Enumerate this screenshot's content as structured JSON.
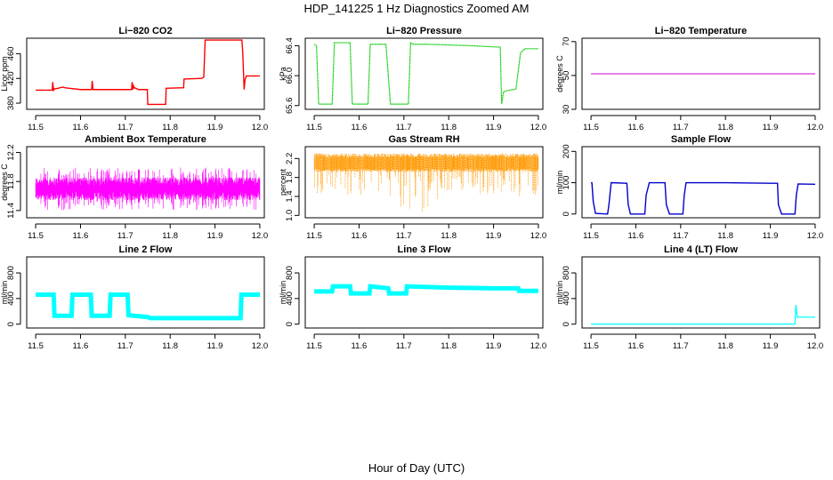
{
  "figure": {
    "title": "HDP_141225  1 Hz Diagnostics Zoomed AM",
    "xlabel": "Hour of Day (UTC)"
  },
  "chart_data": [
    {
      "id": "co2",
      "type": "line",
      "title": "Li−820 CO2",
      "xlabel": "",
      "ylabel": "Licor ppm",
      "color": "#ff0000",
      "marker_size": 1.0,
      "xlim": [
        11.48,
        12.01
      ],
      "xticks": [
        "11.5",
        "11.6",
        "11.7",
        "11.8",
        "11.9",
        "12.0"
      ],
      "ylim": [
        370,
        485
      ],
      "yticks": [
        "380",
        "420",
        "460"
      ],
      "series": [
        {
          "x": [
            11.5,
            11.537,
            11.538,
            11.54,
            11.542,
            11.55,
            11.56,
            11.565,
            11.575,
            11.6,
            11.625,
            11.626,
            11.628,
            11.63,
            11.7,
            11.714,
            11.715,
            11.717,
            11.718,
            11.72,
            11.73,
            11.749,
            11.75,
            11.79,
            11.791,
            11.83,
            11.831,
            11.87,
            11.875,
            11.878,
            11.96,
            11.962,
            11.965,
            11.967,
            11.97,
            12.0
          ],
          "y": [
            401,
            401,
            414,
            401,
            403,
            404,
            406,
            405,
            404,
            402,
            402,
            416,
            402,
            402,
            402,
            402,
            414,
            402,
            408,
            405,
            402,
            402,
            378,
            378,
            404,
            405,
            419,
            420,
            422,
            482,
            482,
            460,
            402,
            418,
            424,
            424
          ]
        }
      ]
    },
    {
      "id": "pressure",
      "type": "line",
      "title": "Li−820 Pressure",
      "xlabel": "",
      "ylabel": "kPa",
      "color": "#00cc00",
      "marker_size": 1.0,
      "xlim": [
        11.48,
        12.01
      ],
      "xticks": [
        "11.5",
        "11.6",
        "11.7",
        "11.8",
        "11.9",
        "12.0"
      ],
      "ylim": [
        65.55,
        66.5
      ],
      "yticks": [
        "65.6",
        "66.0",
        "66.4"
      ],
      "series": [
        {
          "x": [
            11.5,
            11.505,
            11.51,
            11.54,
            11.545,
            11.58,
            11.585,
            11.62,
            11.625,
            11.66,
            11.67,
            11.71,
            11.715,
            11.72,
            11.75,
            11.85,
            11.915,
            11.918,
            11.922,
            11.93,
            11.95,
            11.96,
            11.97,
            11.98,
            11.99,
            12.0
          ],
          "y": [
            66.42,
            66.4,
            65.62,
            65.62,
            66.44,
            66.44,
            65.62,
            65.62,
            66.42,
            66.42,
            65.62,
            65.62,
            66.44,
            66.42,
            66.42,
            66.4,
            66.38,
            65.62,
            65.78,
            65.8,
            65.82,
            66.3,
            66.36,
            66.36,
            66.36,
            66.36
          ]
        }
      ]
    },
    {
      "id": "licor_temp",
      "type": "line",
      "title": "Li−820 Temperature",
      "xlabel": "",
      "ylabel": "degrees C",
      "color": "#cc00cc",
      "marker_size": 0.8,
      "xlim": [
        11.48,
        12.01
      ],
      "xticks": [
        "11.5",
        "11.6",
        "11.7",
        "11.8",
        "11.9",
        "12.0"
      ],
      "ylim": [
        30,
        72
      ],
      "yticks": [
        "30",
        "50",
        "70"
      ],
      "series": [
        {
          "x": [
            11.5,
            12.0
          ],
          "y": [
            51,
            51
          ]
        }
      ]
    },
    {
      "id": "box_temp",
      "type": "line",
      "title": "Ambient Box Temperature",
      "xlabel": "",
      "ylabel": "degrees C",
      "color": "#ff00ff",
      "marker_size": 0.8,
      "xlim": [
        11.48,
        12.01
      ],
      "xticks": [
        "11.5",
        "11.6",
        "11.7",
        "11.8",
        "11.9",
        "12.0"
      ],
      "ylim": [
        11.3,
        12.28
      ],
      "yticks": [
        "11.4",
        "11.8",
        "12.2"
      ],
      "series": [
        {
          "x": [
            11.5,
            12.0
          ],
          "y": [
            11.7,
            11.7
          ]
        }
      ]
    },
    {
      "id": "rh",
      "type": "scatter",
      "title": "Gas Stream RH",
      "xlabel": "",
      "ylabel": "percent",
      "color": "#ff9900",
      "marker_size": 1.0,
      "xlim": [
        11.48,
        12.01
      ],
      "xticks": [
        "11.5",
        "11.6",
        "11.7",
        "11.8",
        "11.9",
        "12.0"
      ],
      "ylim": [
        0.95,
        2.45
      ],
      "yticks": [
        "1.0",
        "1.4",
        "1.8",
        "2.2"
      ],
      "series": [
        {
          "x": [
            11.5,
            12.0
          ],
          "y": [
            2.1,
            2.1
          ]
        }
      ]
    },
    {
      "id": "sample_flow",
      "type": "line",
      "title": "Sample Flow",
      "xlabel": "",
      "ylabel": "ml/min",
      "color": "#0000cc",
      "marker_size": 1.0,
      "xlim": [
        11.48,
        12.01
      ],
      "xticks": [
        "11.5",
        "11.6",
        "11.7",
        "11.8",
        "11.9",
        "12.0"
      ],
      "ylim": [
        -12,
        215
      ],
      "yticks": [
        "0",
        "100",
        "200"
      ],
      "series": [
        {
          "x": [
            11.5,
            11.502,
            11.505,
            11.51,
            11.537,
            11.54,
            11.545,
            11.58,
            11.583,
            11.588,
            11.62,
            11.623,
            11.63,
            11.665,
            11.668,
            11.675,
            11.705,
            11.708,
            11.712,
            11.8,
            11.9,
            11.916,
            11.918,
            11.925,
            11.955,
            11.958,
            11.962,
            12.0
          ],
          "y": [
            100,
            100,
            40,
            2,
            0,
            30,
            100,
            98,
            30,
            0,
            0,
            60,
            100,
            100,
            30,
            0,
            0,
            60,
            100,
            100,
            98,
            98,
            30,
            0,
            0,
            60,
            96,
            95
          ]
        }
      ]
    },
    {
      "id": "line2",
      "type": "line",
      "title": "Line 2 Flow",
      "xlabel": "",
      "ylabel": "ml/min",
      "color": "#00ffff",
      "marker_size": 1.0,
      "xlim": [
        11.48,
        12.01
      ],
      "xticks": [
        "11.5",
        "11.6",
        "11.7",
        "11.8",
        "11.9",
        "12.0"
      ],
      "ylim": [
        -60,
        1050
      ],
      "yticks": [
        "0",
        "400",
        "800"
      ],
      "series": [
        {
          "x": [
            11.5,
            11.54,
            11.542,
            11.58,
            11.582,
            11.623,
            11.625,
            11.665,
            11.667,
            11.705,
            11.707,
            11.75,
            11.755,
            11.9,
            11.957,
            11.959,
            12.0
          ],
          "y": [
            460,
            460,
            130,
            130,
            460,
            460,
            130,
            130,
            460,
            460,
            140,
            110,
            95,
            95,
            95,
            460,
            460
          ]
        }
      ]
    },
    {
      "id": "line3",
      "type": "line",
      "title": "Line 3 Flow",
      "xlabel": "",
      "ylabel": "ml/min",
      "color": "#00ffff",
      "marker_size": 1.0,
      "xlim": [
        11.48,
        12.01
      ],
      "xticks": [
        "11.5",
        "11.6",
        "11.7",
        "11.8",
        "11.9",
        "12.0"
      ],
      "ylim": [
        -60,
        1050
      ],
      "yticks": [
        "0",
        "400",
        "800"
      ],
      "series": [
        {
          "x": [
            11.5,
            11.54,
            11.542,
            11.58,
            11.582,
            11.623,
            11.625,
            11.665,
            11.667,
            11.705,
            11.707,
            11.8,
            11.9,
            11.955,
            11.957,
            12.0
          ],
          "y": [
            510,
            510,
            590,
            590,
            480,
            480,
            590,
            560,
            480,
            480,
            590,
            570,
            560,
            560,
            520,
            520
          ]
        }
      ]
    },
    {
      "id": "line4",
      "type": "line",
      "title": "Line 4 (LT) Flow",
      "xlabel": "",
      "ylabel": "ml/min",
      "color": "#00ffff",
      "marker_size": 0.9,
      "xlim": [
        11.48,
        12.01
      ],
      "xticks": [
        "11.5",
        "11.6",
        "11.7",
        "11.8",
        "11.9",
        "12.0"
      ],
      "ylim": [
        -60,
        1050
      ],
      "yticks": [
        "0",
        "400",
        "800"
      ],
      "series": [
        {
          "x": [
            11.5,
            11.955,
            11.957,
            11.96,
            11.962,
            12.0
          ],
          "y": [
            0,
            0,
            300,
            110,
            110,
            110
          ]
        }
      ]
    }
  ]
}
